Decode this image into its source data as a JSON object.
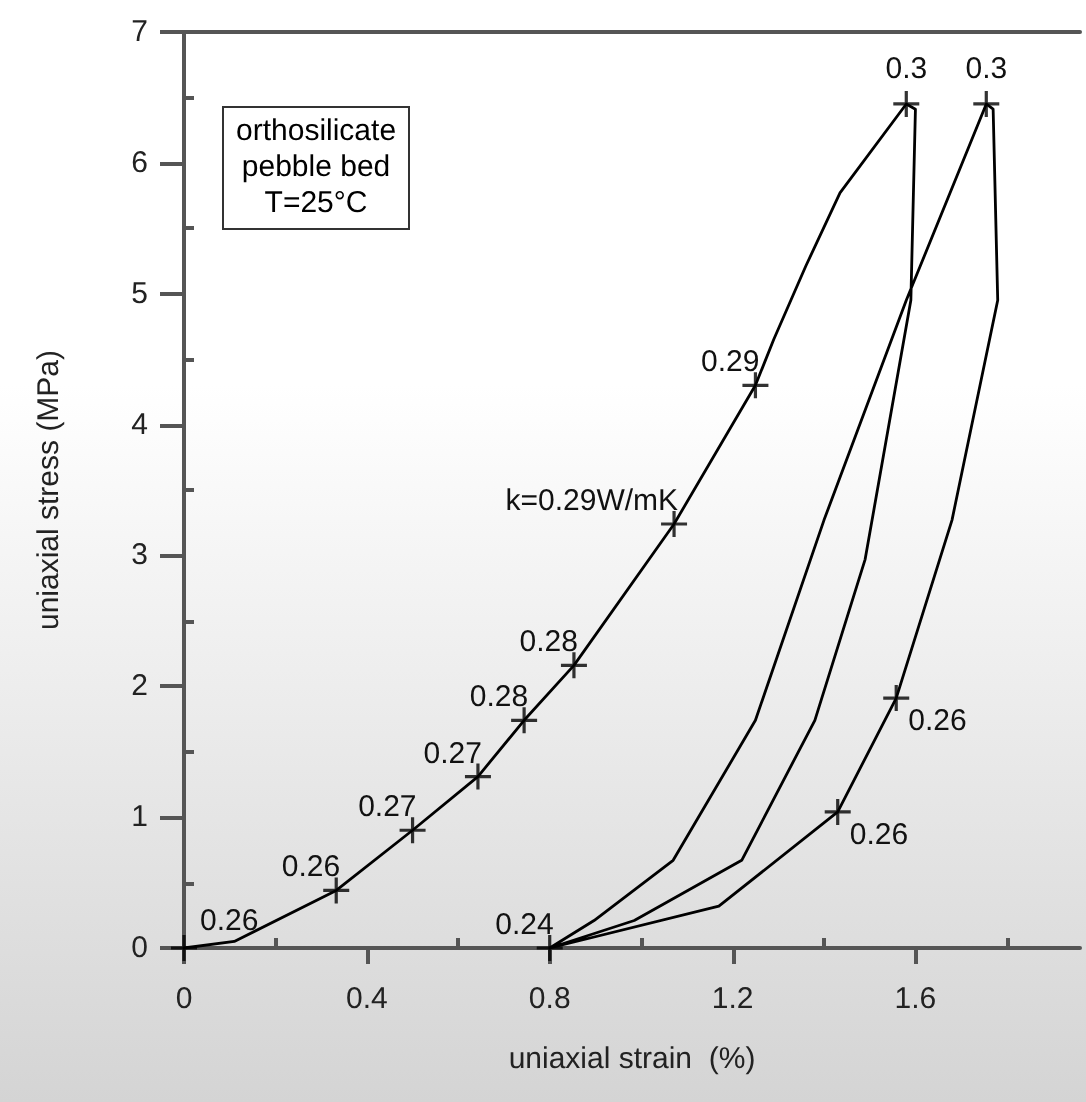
{
  "chart_data": {
    "type": "line",
    "xlabel": "uniaxial strain  (%)",
    "ylabel": "uniaxial stress (MPa)",
    "xlim": [
      0,
      1.96
    ],
    "xticks": [
      0,
      0.4,
      0.8,
      1.2,
      1.6
    ],
    "ylim": [
      0,
      7
    ],
    "yticks": [
      0,
      1,
      2,
      3,
      4,
      5,
      6,
      7
    ],
    "grid": false,
    "marker": "none",
    "line_style": "solid",
    "annotations": [
      "orthosilicate\npebble bed\nT=25°C",
      {
        "text": "0.26",
        "x": 0,
        "y": 0
      },
      {
        "text": "0.26",
        "x": 0.333,
        "y": 0.44
      },
      {
        "text": "0.27",
        "x": 0.5,
        "y": 0.9
      },
      {
        "text": "0.27",
        "x": 0.643,
        "y": 1.31
      },
      {
        "text": "0.28",
        "x": 0.744,
        "y": 1.74
      },
      {
        "text": "0.28",
        "x": 0.853,
        "y": 2.16
      },
      {
        "text": "k=0.29W/mK",
        "x": 1.072,
        "y": 3.24
      },
      {
        "text": "0.29",
        "x": 1.25,
        "y": 4.3
      },
      {
        "text": "0.3",
        "x": 1.58,
        "y": 6.45
      },
      {
        "text": "0.3",
        "x": 1.755,
        "y": 6.45
      },
      {
        "text": "0.24",
        "x": 0.8,
        "y": 0
      },
      {
        "text": "0.26",
        "x": 1.558,
        "y": 1.91
      },
      {
        "text": "0.26",
        "x": 1.43,
        "y": 1.04
      }
    ],
    "series": [
      {
        "color": "#000000",
        "x": [
          0,
          0.11,
          0.333,
          0.5,
          0.643,
          0.744,
          0.853,
          1.072,
          1.25,
          1.29,
          1.36,
          1.435,
          1.58,
          1.6,
          1.59,
          1.49,
          1.38,
          1.22,
          0.985,
          0.8,
          0.897,
          1.07,
          1.25,
          1.4,
          1.58,
          1.755,
          1.77,
          1.78,
          1.68,
          1.558,
          1.43,
          1.17,
          0.8
        ],
        "values": [
          0,
          0.05,
          0.44,
          0.9,
          1.31,
          1.74,
          2.16,
          3.24,
          4.3,
          4.65,
          5.21,
          5.77,
          6.45,
          6.41,
          4.95,
          2.97,
          1.74,
          0.67,
          0.21,
          0,
          0.21,
          0.67,
          1.74,
          3.27,
          4.95,
          6.45,
          6.41,
          4.95,
          3.27,
          1.91,
          1.04,
          0.32,
          0
        ]
      },
      {
        "type": "scatter",
        "marker": "cross",
        "color": "#000000",
        "x": [
          0,
          0.333,
          0.5,
          0.643,
          0.744,
          0.853,
          1.072,
          1.25,
          1.58,
          1.755,
          0.8,
          1.558,
          1.43
        ],
        "values": [
          0,
          0.44,
          0.9,
          1.31,
          1.74,
          2.16,
          3.24,
          4.3,
          6.45,
          6.45,
          0,
          1.91,
          1.04
        ]
      }
    ]
  }
}
